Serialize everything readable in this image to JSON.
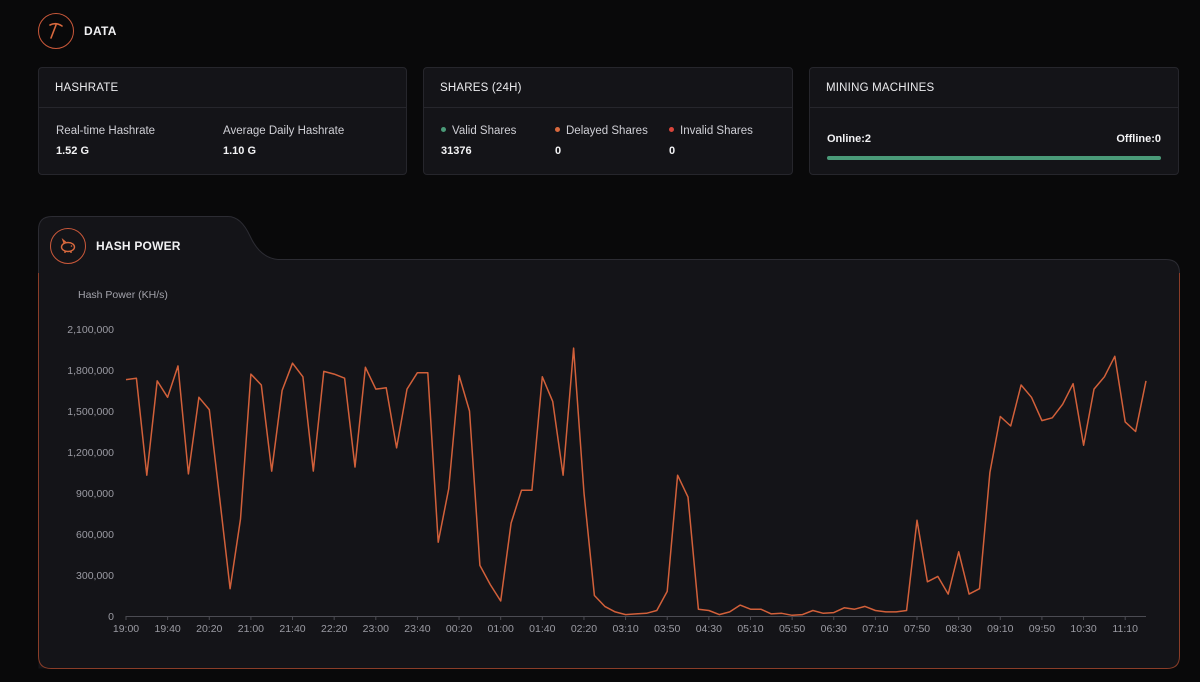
{
  "header": {
    "title": "DATA",
    "icon": "pickaxe-icon"
  },
  "hashrate_card": {
    "title": "HASHRATE",
    "realtime_label": "Real-time Hashrate",
    "realtime_value": "1.52 G",
    "avg_label": "Average Daily Hashrate",
    "avg_value": "1.10 G"
  },
  "shares_card": {
    "title": "SHARES (24H)",
    "valid_label": "Valid Shares",
    "valid_value": "31376",
    "delayed_label": "Delayed Shares",
    "delayed_value": "0",
    "invalid_label": "Invalid Shares",
    "invalid_value": "0",
    "colors": {
      "valid": "#4a9a78",
      "delayed": "#d9693e",
      "invalid": "#d9453b"
    }
  },
  "machines_card": {
    "title": "MINING MACHINES",
    "online": "Online:2",
    "offline": "Offline:0",
    "online_fraction": 1.0
  },
  "hash_power": {
    "title": "HASH POWER",
    "icon": "piggy-bank-icon"
  },
  "chart_data": {
    "type": "line",
    "ylabel": "Hash Power (KH/s)",
    "ylim": [
      0,
      2100000
    ],
    "yticks": [
      0,
      300000,
      600000,
      900000,
      1200000,
      1500000,
      1800000,
      2100000
    ],
    "ytick_labels": [
      "0",
      "300,000",
      "600,000",
      "900,000",
      "1,200,000",
      "1,500,000",
      "1,800,000",
      "2,100,000"
    ],
    "xtick_labels": [
      "19:00",
      "19:40",
      "20:20",
      "21:00",
      "21:40",
      "22:20",
      "23:00",
      "23:40",
      "00:20",
      "01:00",
      "01:40",
      "02:20",
      "03:10",
      "03:50",
      "04:30",
      "05:10",
      "05:50",
      "06:30",
      "07:10",
      "07:50",
      "08:30",
      "09:10",
      "09:50",
      "10:30",
      "11:10"
    ],
    "xtick_positions": [
      0,
      4,
      8,
      12,
      16,
      20,
      24,
      28,
      32,
      36,
      40,
      44,
      48,
      52,
      56,
      60,
      64,
      68,
      72,
      76,
      80,
      84,
      88,
      92,
      96
    ],
    "line_color": "#d2603a",
    "grid": false,
    "series": [
      {
        "values": [
          1730000,
          1740000,
          1030000,
          1720000,
          1600000,
          1830000,
          1040000,
          1600000,
          1510000,
          860000,
          200000,
          710000,
          1770000,
          1690000,
          1060000,
          1650000,
          1850000,
          1750000,
          1060000,
          1790000,
          1770000,
          1740000,
          1090000,
          1820000,
          1660000,
          1670000,
          1230000,
          1660000,
          1780000,
          1780000,
          540000,
          930000,
          1760000,
          1500000,
          370000,
          230000,
          110000,
          680000,
          920000,
          920000,
          1750000,
          1570000,
          1030000,
          1960000,
          900000,
          150000,
          70000,
          30000,
          10000,
          15000,
          20000,
          40000,
          180000,
          1030000,
          870000,
          50000,
          40000,
          10000,
          30000,
          80000,
          50000,
          50000,
          15000,
          20000,
          5000,
          10000,
          40000,
          20000,
          25000,
          60000,
          50000,
          70000,
          40000,
          30000,
          30000,
          40000,
          700000,
          250000,
          290000,
          160000,
          470000,
          160000,
          200000,
          1050000,
          1460000,
          1390000,
          1690000,
          1600000,
          1430000,
          1450000,
          1550000,
          1700000,
          1250000,
          1660000,
          1750000,
          1900000,
          1420000,
          1350000,
          1720000
        ]
      }
    ]
  }
}
